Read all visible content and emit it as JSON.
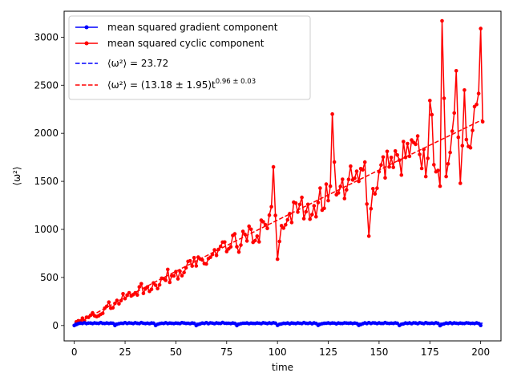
{
  "chart_data": {
    "type": "line",
    "title": "",
    "xlabel": "time",
    "ylabel": "⟨ω²⟩",
    "xlim": [
      -5,
      210
    ],
    "ylim": [
      -160,
      3270
    ],
    "xticks": [
      0,
      25,
      50,
      75,
      100,
      125,
      150,
      175,
      200
    ],
    "yticks": [
      0,
      500,
      1000,
      1500,
      2000,
      2500,
      3000
    ],
    "grid": false,
    "legend_position": "top-left",
    "series": [
      {
        "name": "mean squared gradient component",
        "style": "line-marker",
        "color": "#0000ff",
        "mean": 23.72,
        "x_range": [
          0,
          200
        ],
        "values_note_pattern": [
          0,
          12,
          18,
          25,
          22,
          28,
          20,
          26,
          24,
          19,
          27,
          23,
          21,
          29,
          24,
          22,
          25,
          20,
          27,
          23
        ]
      },
      {
        "name": "mean squared cyclic component",
        "style": "line-marker",
        "color": "#ff0000",
        "x": [
          0,
          5,
          10,
          15,
          20,
          25,
          30,
          35,
          40,
          45,
          50,
          55,
          60,
          65,
          70,
          75,
          80,
          85,
          90,
          95,
          98,
          100,
          105,
          110,
          115,
          120,
          125,
          127,
          130,
          135,
          140,
          143,
          145,
          150,
          155,
          160,
          165,
          170,
          173,
          175,
          178,
          180,
          181,
          183,
          185,
          188,
          190,
          192,
          195,
          198,
          200,
          201
        ],
        "y": [
          0,
          50,
          100,
          180,
          230,
          280,
          340,
          380,
          420,
          470,
          560,
          600,
          620,
          640,
          730,
          770,
          820,
          880,
          930,
          1010,
          1650,
          690,
          1100,
          1180,
          1260,
          1280,
          1300,
          2200,
          1380,
          1520,
          1500,
          1700,
          930,
          1600,
          1650,
          1720,
          1760,
          1780,
          1550,
          2340,
          1600,
          1450,
          3170,
          1550,
          1800,
          2650,
          1480,
          2450,
          1850,
          2300,
          3090,
          2120
        ]
      },
      {
        "name": "⟨ω²⟩ = 23.72",
        "style": "dashed",
        "color": "#0000ff",
        "value": 23.72
      },
      {
        "name": "⟨ω²⟩ = (13.18 ± 1.95)t^0.96 ± 0.03",
        "style": "dashed",
        "color": "#ff0000",
        "coefficient": 13.18,
        "coefficient_err": 1.95,
        "exponent": 0.96,
        "exponent_err": 0.03
      }
    ],
    "legend": {
      "entry1": "mean squared gradient component",
      "entry2": "mean squared cyclic component",
      "entry3_prefix": "⟨ω²⟩ = 23.72",
      "entry4_prefix": "⟨ω²⟩ = (13.18 ± 1.95)t",
      "entry4_sup": "0.96 ± 0.03"
    }
  }
}
